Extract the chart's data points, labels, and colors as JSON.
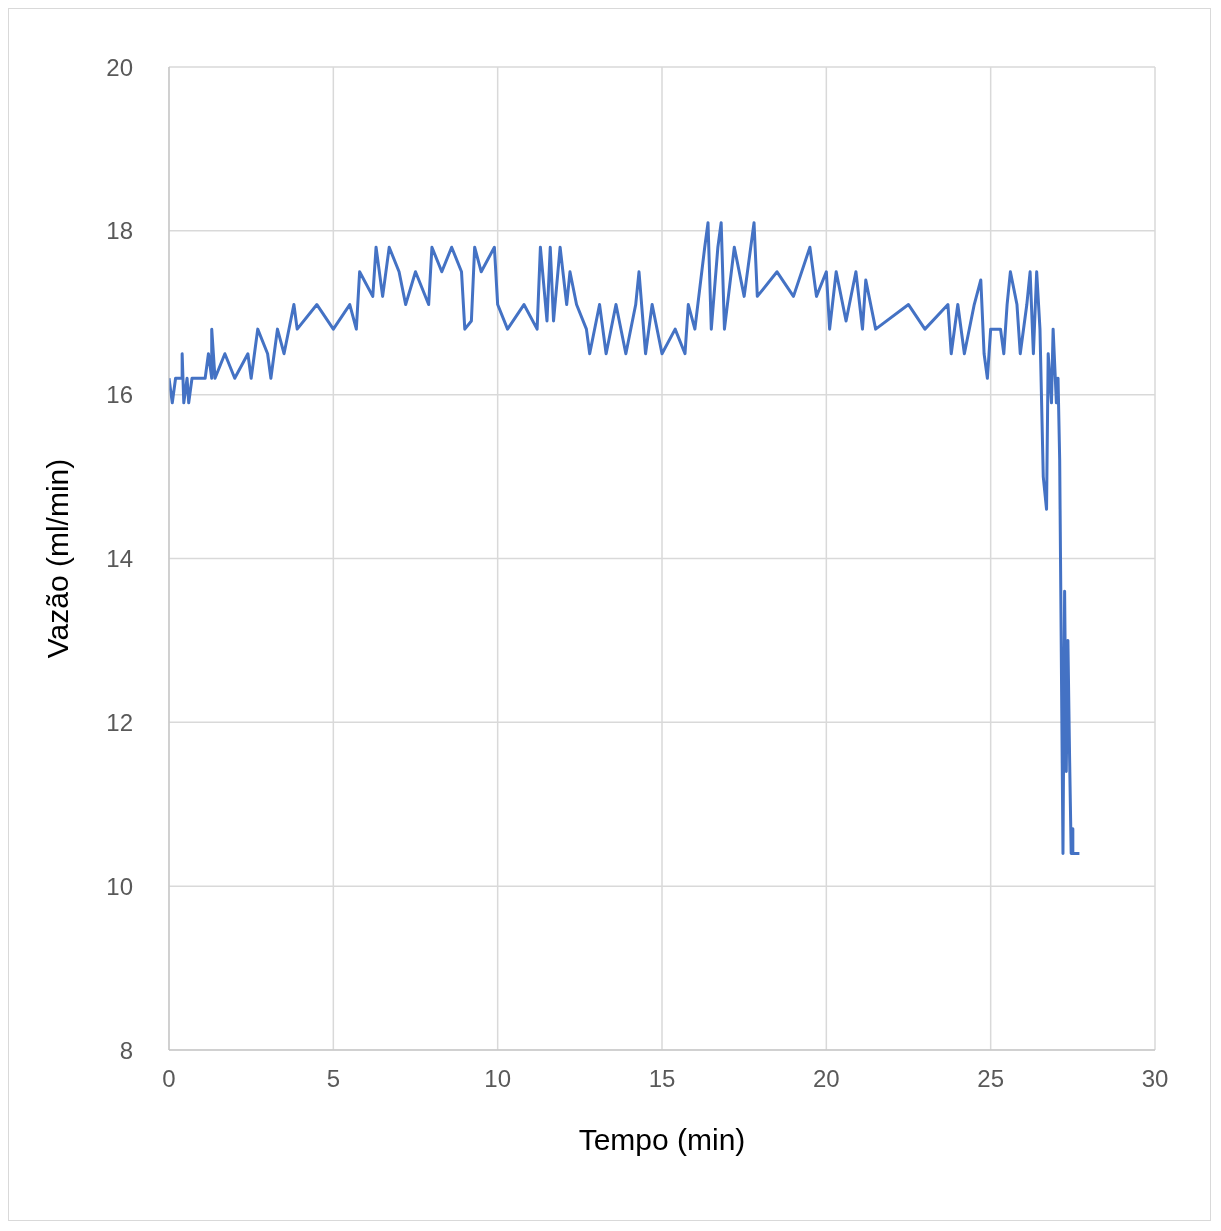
{
  "chart_data": {
    "type": "line",
    "xlabel": "Tempo (min)",
    "ylabel": "Vazão (ml/min)",
    "xlim": [
      0,
      30
    ],
    "xticks": [
      0,
      5,
      10,
      15,
      20,
      25,
      30
    ],
    "ylim": [
      8,
      20
    ],
    "yticks": [
      8,
      10,
      12,
      14,
      16,
      18,
      20
    ],
    "grid": true,
    "legend": false,
    "marker": "none",
    "line_style": "solid",
    "series": [
      {
        "color": "#4472c4",
        "x": [
          0,
          0.1,
          0.2,
          0.4,
          0.4,
          0.45,
          0.55,
          0.6,
          0.7,
          1.1,
          1.2,
          1.3,
          1.3,
          1.4,
          1.7,
          2.0,
          2.4,
          2.5,
          2.7,
          3.0,
          3.1,
          3.3,
          3.5,
          3.8,
          3.9,
          4.5,
          5.0,
          5.5,
          5.7,
          5.8,
          6.2,
          6.3,
          6.5,
          6.7,
          7.0,
          7.2,
          7.5,
          7.9,
          8.0,
          8.3,
          8.6,
          8.9,
          9.0,
          9.2,
          9.3,
          9.5,
          9.9,
          10.0,
          10.3,
          10.8,
          11.2,
          11.3,
          11.5,
          11.6,
          11.7,
          11.9,
          12.1,
          12.2,
          12.4,
          12.7,
          12.8,
          13.1,
          13.3,
          13.6,
          13.9,
          14.2,
          14.3,
          14.5,
          14.7,
          15.0,
          15.4,
          15.7,
          15.8,
          16.0,
          16.3,
          16.4,
          16.5,
          16.7,
          16.8,
          16.9,
          17.2,
          17.5,
          17.8,
          17.9,
          18.5,
          19.0,
          19.5,
          19.7,
          20.0,
          20.1,
          20.3,
          20.6,
          20.9,
          21.1,
          21.2,
          21.5,
          22.5,
          23.0,
          23.7,
          23.8,
          24.0,
          24.2,
          24.5,
          24.7,
          24.8,
          24.9,
          25.0,
          25.3,
          25.4,
          25.5,
          25.6,
          25.8,
          25.9,
          26.1,
          26.2,
          26.3,
          26.4,
          26.5,
          26.6,
          26.7,
          26.75,
          26.85,
          26.9,
          27.0,
          27.05,
          27.1,
          27.2,
          27.25,
          27.3,
          27.35,
          27.4,
          27.45,
          27.5,
          27.5,
          27.7
        ],
        "values": [
          16.2,
          15.9,
          16.2,
          16.2,
          16.5,
          15.9,
          16.2,
          15.9,
          16.2,
          16.2,
          16.5,
          16.2,
          16.8,
          16.2,
          16.5,
          16.2,
          16.5,
          16.2,
          16.8,
          16.5,
          16.2,
          16.8,
          16.5,
          17.1,
          16.8,
          17.1,
          16.8,
          17.1,
          16.8,
          17.5,
          17.2,
          17.8,
          17.2,
          17.8,
          17.5,
          17.1,
          17.5,
          17.1,
          17.8,
          17.5,
          17.8,
          17.5,
          16.8,
          16.9,
          17.8,
          17.5,
          17.8,
          17.1,
          16.8,
          17.1,
          16.8,
          17.8,
          16.9,
          17.8,
          16.9,
          17.8,
          17.1,
          17.5,
          17.1,
          16.8,
          16.5,
          17.1,
          16.5,
          17.1,
          16.5,
          17.1,
          17.5,
          16.5,
          17.1,
          16.5,
          16.8,
          16.5,
          17.1,
          16.8,
          17.8,
          18.1,
          16.8,
          17.8,
          18.1,
          16.8,
          17.8,
          17.2,
          18.1,
          17.2,
          17.5,
          17.2,
          17.8,
          17.2,
          17.5,
          16.8,
          17.5,
          16.9,
          17.5,
          16.8,
          17.4,
          16.8,
          17.1,
          16.8,
          17.1,
          16.5,
          17.1,
          16.5,
          17.1,
          17.4,
          16.5,
          16.2,
          16.8,
          16.8,
          16.5,
          17.1,
          17.5,
          17.1,
          16.5,
          17.1,
          17.5,
          16.5,
          17.5,
          16.8,
          15.0,
          14.6,
          16.5,
          15.9,
          16.8,
          15.9,
          16.2,
          15.2,
          10.4,
          13.6,
          11.4,
          13.0,
          11.6,
          10.4,
          10.7,
          10.4,
          10.4
        ]
      }
    ]
  }
}
